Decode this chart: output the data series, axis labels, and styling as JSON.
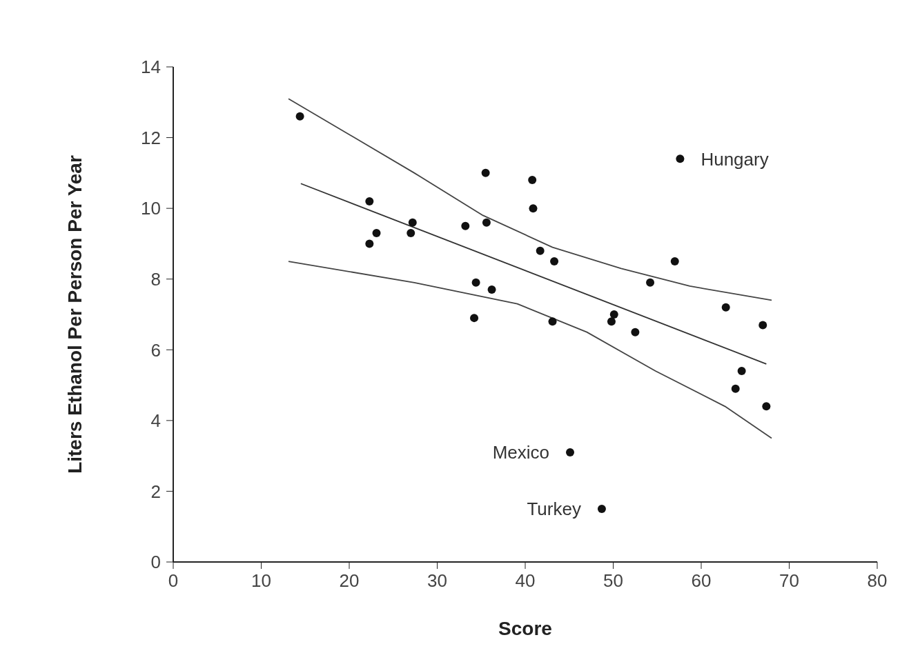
{
  "chart_data": {
    "type": "scatter",
    "xlabel": "Score",
    "ylabel": "Liters Ethanol Per Person Per Year",
    "xlim": [
      0,
      80
    ],
    "xticks": [
      0,
      10,
      20,
      30,
      40,
      50,
      60,
      70,
      80
    ],
    "ylim": [
      0,
      14
    ],
    "yticks": [
      0,
      2,
      4,
      6,
      8,
      10,
      12,
      14
    ],
    "grid": false,
    "marker": "circle",
    "series": [
      {
        "color": "#111111",
        "x": [
          14.4,
          22.3,
          22.3,
          23.1,
          27.0,
          27.2,
          33.2,
          35.5,
          35.6,
          34.4,
          34.2,
          36.2,
          40.8,
          40.9,
          41.7,
          43.3,
          43.1,
          45.1,
          48.7,
          49.8,
          50.1,
          52.5,
          54.2,
          57.0,
          57.6,
          62.8,
          63.9,
          64.6,
          67.0,
          67.4
        ],
        "values": [
          12.6,
          10.2,
          9.0,
          9.3,
          9.3,
          9.6,
          9.5,
          11.0,
          9.6,
          7.9,
          6.9,
          7.7,
          10.8,
          10.0,
          8.8,
          8.5,
          6.8,
          3.1,
          1.5,
          6.8,
          7.0,
          6.5,
          7.9,
          8.5,
          11.4,
          7.2,
          4.9,
          5.4,
          6.7,
          4.4
        ]
      },
      {
        "type": "line",
        "color": "#333333",
        "marker": "none",
        "line_style": "solid",
        "x": [
          14.5,
          67.4
        ],
        "values": [
          10.7,
          5.6
        ]
      },
      {
        "type": "line",
        "color": "#444444",
        "marker": "none",
        "line_style": "solid",
        "x": [
          13.1,
          27.4,
          35.2,
          43.1,
          50.9,
          58.7,
          68.0
        ],
        "values": [
          13.1,
          11.0,
          9.8,
          8.9,
          8.3,
          7.8,
          7.4
        ]
      },
      {
        "type": "line",
        "color": "#444444",
        "marker": "none",
        "line_style": "solid",
        "x": [
          13.1,
          27.4,
          39.1,
          47.0,
          54.8,
          62.7,
          68.0
        ],
        "values": [
          8.5,
          7.9,
          7.3,
          6.5,
          5.4,
          4.4,
          3.5
        ]
      }
    ],
    "annotations": [
      {
        "text": "Hungary",
        "x": 57.6,
        "y": 11.4
      },
      {
        "text": "Mexico",
        "x": 45.1,
        "y": 3.1
      },
      {
        "text": "Turkey",
        "x": 48.7,
        "y": 1.5
      }
    ]
  }
}
